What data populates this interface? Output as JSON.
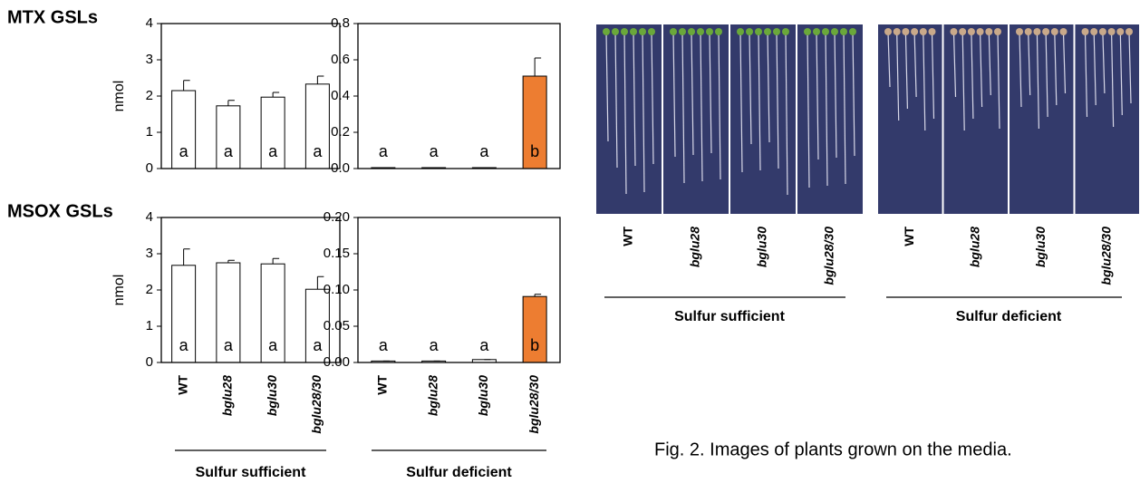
{
  "chart_data": [
    {
      "type": "bar",
      "title": "MTX GSLs",
      "ylabel": "nmol",
      "values": [
        2.15,
        1.73,
        1.97,
        2.33
      ],
      "errors": [
        0.28,
        0.15,
        0.13,
        0.22
      ],
      "colors": [
        "#ffffff",
        "#ffffff",
        "#ffffff",
        "#ffffff"
      ],
      "letters": [
        "a",
        "a",
        "a",
        "a"
      ],
      "ylim": [
        0,
        4
      ],
      "yticks": [
        0,
        1,
        2,
        3,
        4
      ]
    },
    {
      "type": "bar",
      "values": [
        0.005,
        0.005,
        0.005,
        0.51
      ],
      "errors": [
        0,
        0,
        0,
        0.1
      ],
      "colors": [
        "#ffffff",
        "#ffffff",
        "#ffffff",
        "#ed7d31"
      ],
      "letters": [
        "a",
        "a",
        "a",
        "b"
      ],
      "ylim": [
        0,
        0.8
      ],
      "yticks": [
        {
          "value": 0,
          "label": "0.0"
        },
        0.2,
        0.4,
        0.6,
        0.8
      ]
    },
    {
      "type": "bar",
      "title": "MSOX GSLs",
      "ylabel": "nmol",
      "xlabel": "Sulfur sufficient",
      "categories": [
        "WT",
        "bglu28",
        "bglu30",
        "bglu28/30"
      ],
      "values": [
        2.68,
        2.75,
        2.72,
        2.02
      ],
      "errors": [
        0.45,
        0.07,
        0.15,
        0.35
      ],
      "colors": [
        "#ffffff",
        "#ffffff",
        "#ffffff",
        "#ffffff"
      ],
      "letters": [
        "a",
        "a",
        "a",
        "a"
      ],
      "ylim": [
        0,
        4
      ],
      "yticks": [
        0,
        1,
        2,
        3,
        4
      ]
    },
    {
      "type": "bar",
      "xlabel": "Sulfur deficient",
      "categories": [
        "WT",
        "bglu28",
        "bglu30",
        "bglu28/30"
      ],
      "values": [
        0.002,
        0.002,
        0.004,
        0.091
      ],
      "errors": [
        0,
        0,
        0,
        0.003
      ],
      "colors": [
        "#ffffff",
        "#ffffff",
        "#ffffff",
        "#ed7d31"
      ],
      "letters": [
        "a",
        "a",
        "a",
        "b"
      ],
      "ylim": [
        0,
        0.2
      ],
      "yticks": [
        {
          "value": 0,
          "label": "0.00"
        },
        {
          "value": 0.05,
          "label": "0.05"
        },
        {
          "value": 0.1,
          "label": "0.10"
        },
        {
          "value": 0.15,
          "label": "0.15"
        },
        {
          "value": 0.2,
          "label": "0.20"
        }
      ]
    }
  ],
  "photos": {
    "panels": [
      {
        "group": "Sulfur sufficient",
        "labels": [
          "WT",
          "bglu28",
          "bglu30",
          "bglu28/30"
        ]
      },
      {
        "group": "Sulfur deficient",
        "labels": [
          "WT",
          "bglu28",
          "bglu30",
          "bglu28/30"
        ]
      }
    ]
  },
  "caption": "Fig. 2. Images of plants grown on the media."
}
